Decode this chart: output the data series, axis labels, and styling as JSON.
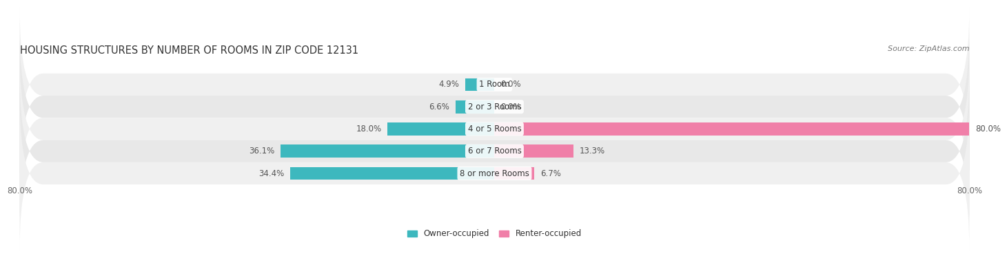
{
  "title": "HOUSING STRUCTURES BY NUMBER OF ROOMS IN ZIP CODE 12131",
  "source": "Source: ZipAtlas.com",
  "categories": [
    "1 Room",
    "2 or 3 Rooms",
    "4 or 5 Rooms",
    "6 or 7 Rooms",
    "8 or more Rooms"
  ],
  "owner_values": [
    4.9,
    6.6,
    18.0,
    36.1,
    34.4
  ],
  "renter_values": [
    0.0,
    0.0,
    80.0,
    13.3,
    6.7
  ],
  "owner_color": "#3db8be",
  "renter_color": "#f07fa8",
  "row_bg_colors": [
    "#f0f0f0",
    "#e8e8e8"
  ],
  "axis_min": -80.0,
  "axis_max": 80.0,
  "title_fontsize": 10.5,
  "label_fontsize": 8.5,
  "tick_fontsize": 8.5,
  "source_fontsize": 8
}
